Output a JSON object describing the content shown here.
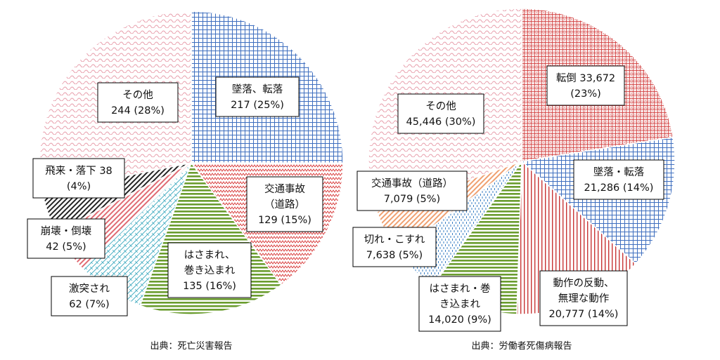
{
  "chart_data": [
    {
      "type": "pie",
      "source": "出典：死亡災害報告",
      "slices": [
        {
          "lines": [
            "墜落、転落",
            "217 (25%)"
          ],
          "value": 217,
          "percent": 25,
          "color": "#3f6fbf",
          "pattern": "grid"
        },
        {
          "lines": [
            "交通事故",
            "（道路）",
            "129 (15%)"
          ],
          "value": 129,
          "percent": 15,
          "color": "#d94040",
          "pattern": "zigzag"
        },
        {
          "lines": [
            "はさまれ、",
            "巻き込まれ",
            "135 (16%)"
          ],
          "value": 135,
          "percent": 16,
          "color": "#6a9c2e",
          "pattern": "hstripe"
        },
        {
          "lines": [
            "激突され",
            "62 (7%)"
          ],
          "value": 62,
          "percent": 7,
          "color": "#4bb0c4",
          "pattern": "brick"
        },
        {
          "lines": [
            "崩壊・倒壊",
            "42 (5%)"
          ],
          "value": 42,
          "percent": 5,
          "color": "#e06a73",
          "pattern": "diag"
        },
        {
          "lines": [
            "飛来・落下 38",
            "(4%)"
          ],
          "value": 38,
          "percent": 4,
          "color": "#222222",
          "pattern": "diag"
        },
        {
          "lines": [
            "その他",
            "244 (28%)"
          ],
          "value": 244,
          "percent": 28,
          "color": "#e8a0ad",
          "pattern": "wave"
        }
      ]
    },
    {
      "type": "pie",
      "source": "出典：労働者死傷病報告",
      "slices": [
        {
          "lines": [
            "転倒 33,672",
            "(23%)"
          ],
          "value": 33672,
          "percent": 23,
          "color": "#d44a4a",
          "pattern": "dots"
        },
        {
          "lines": [
            "墜落・転落",
            "21,286 (14%)"
          ],
          "value": 21286,
          "percent": 14,
          "color": "#3f6fbf",
          "pattern": "grid"
        },
        {
          "lines": [
            "動作の反動、",
            "無理な動作",
            "20,777 (14%)"
          ],
          "value": 20777,
          "percent": 14,
          "color": "#c83535",
          "pattern": "vstripe"
        },
        {
          "lines": [
            "はさまれ・巻",
            "き込まれ",
            "14,020 (9%)"
          ],
          "value": 14020,
          "percent": 9,
          "color": "#6a9c2e",
          "pattern": "hstripe"
        },
        {
          "lines": [
            "切れ・こすれ",
            "7,638 (5%)"
          ],
          "value": 7638,
          "percent": 5,
          "color": "#3a7fc4",
          "pattern": "vdash"
        },
        {
          "lines": [
            "交通事故（道路）",
            "7,079 (5%)"
          ],
          "value": 7079,
          "percent": 5,
          "color": "#f0a070",
          "pattern": "diag"
        },
        {
          "lines": [
            "その他",
            "45,446 (30%)"
          ],
          "value": 45446,
          "percent": 30,
          "color": "#e8a0ad",
          "pattern": "wave"
        }
      ]
    }
  ]
}
